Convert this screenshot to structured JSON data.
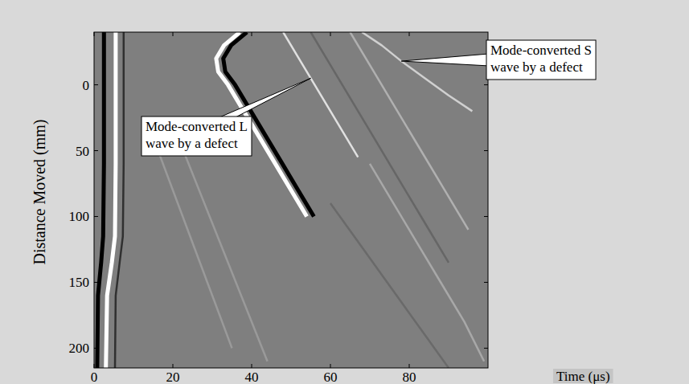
{
  "chart_data": {
    "type": "line",
    "x_label": "Time (μs)",
    "y_label": "Distance Moved (mm)",
    "xlim": [
      0,
      100
    ],
    "ylim": [
      -40,
      215
    ],
    "xticks": [
      0,
      20,
      40,
      60,
      80
    ],
    "yticks": [
      0,
      50,
      100,
      150,
      200
    ],
    "grid": false,
    "series": [
      {
        "color": "#000000",
        "x": [
          2.5,
          2.5,
          2.3,
          1.8,
          1.0,
          0.8
        ],
        "values": [
          -40,
          60,
          115,
          135,
          160,
          215
        ]
      },
      {
        "color": "#ffffff",
        "x": [
          5.5,
          5.5,
          5.3,
          4.5,
          3.3,
          3.0
        ],
        "values": [
          -40,
          60,
          115,
          135,
          160,
          215
        ]
      },
      {
        "color": "#303030",
        "x": [
          7.5,
          7.5,
          7.3,
          6.5,
          5.5,
          5.3
        ],
        "values": [
          -40,
          60,
          115,
          135,
          160,
          215
        ]
      },
      {
        "color": "#ffffff",
        "x": [
          37,
          33,
          31,
          31.5,
          34,
          38,
          42,
          46,
          50,
          54
        ],
        "values": [
          -40,
          -30,
          -20,
          -10,
          0,
          20,
          40,
          60,
          80,
          100
        ]
      },
      {
        "color": "#000000",
        "x": [
          38.8,
          34.8,
          32.8,
          33.3,
          35.8,
          39.8,
          43.8,
          47.8,
          51.8,
          55.8
        ],
        "values": [
          -40,
          -30,
          -20,
          -10,
          0,
          20,
          40,
          60,
          80,
          100
        ]
      },
      {
        "color": "#e0e0e0",
        "x": [
          48,
          52,
          55,
          59,
          63,
          67
        ],
        "values": [
          -40,
          -20,
          -5,
          15,
          35,
          55
        ]
      },
      {
        "color": "#d0d0d0",
        "x": [
          68,
          73,
          78,
          84,
          90,
          96
        ],
        "values": [
          -40,
          -30,
          -18,
          -5,
          8,
          20
        ]
      },
      {
        "color": "#9a9a9a",
        "x": [
          15,
          20,
          25,
          30,
          35
        ],
        "values": [
          40,
          80,
          120,
          160,
          200
        ]
      },
      {
        "color": "#9a9a9a",
        "x": [
          20,
          26,
          32,
          38,
          44
        ],
        "values": [
          30,
          75,
          120,
          165,
          210
        ]
      },
      {
        "color": "#6a6a6a",
        "x": [
          60,
          66,
          72,
          78,
          84,
          90
        ],
        "values": [
          90,
          115,
          140,
          165,
          190,
          215
        ]
      },
      {
        "color": "#a8a8a8",
        "x": [
          70,
          76,
          82,
          88,
          94,
          99
        ],
        "values": [
          60,
          90,
          120,
          150,
          180,
          210
        ]
      },
      {
        "color": "#666666",
        "x": [
          55,
          62,
          69,
          76,
          83,
          90
        ],
        "values": [
          -40,
          -5,
          30,
          65,
          100,
          135
        ]
      },
      {
        "color": "#b0b0b0",
        "x": [
          65,
          71,
          77,
          83,
          89,
          95
        ],
        "values": [
          -40,
          -10,
          20,
          50,
          80,
          110
        ]
      }
    ],
    "annotations": [
      {
        "lines": [
          "Mode-converted L",
          "wave by a defect"
        ],
        "x": 55,
        "y": -5
      },
      {
        "lines": [
          "Mode-converted S",
          "wave by a defect"
        ],
        "x": 78,
        "y": -18
      }
    ]
  }
}
